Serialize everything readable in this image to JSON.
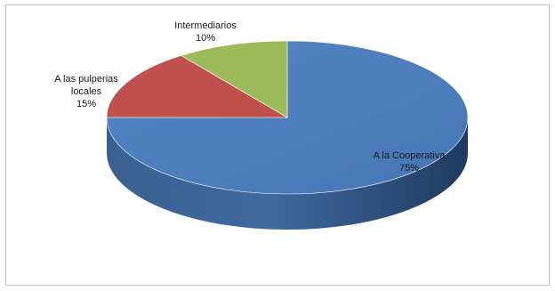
{
  "chart_data": {
    "type": "pie",
    "style": "3d",
    "slices": [
      {
        "label": "A la Cooperativa",
        "value": 75,
        "value_label": "75%",
        "color": "#4f81bd"
      },
      {
        "label": "A las pulperias locales",
        "value": 15,
        "value_label": "15%",
        "color": "#c0504d"
      },
      {
        "label": "Intermediarios",
        "value": 10,
        "value_label": "10%",
        "color": "#9bbb59"
      }
    ]
  }
}
